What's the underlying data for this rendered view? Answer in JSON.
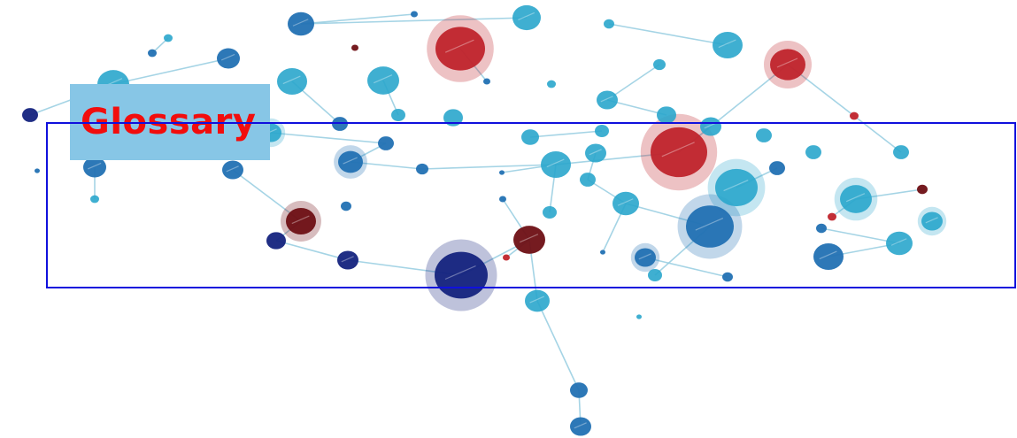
{
  "header": {
    "title": "Glossary"
  },
  "colors": {
    "title_text": "#f20d0d",
    "title_background": "#87c6e6",
    "frame": "#1010dd",
    "node_light_blue": "#2aa6cc",
    "node_mid_blue": "#2271b3",
    "node_dark_blue": "#14237e",
    "node_red": "#c0242c",
    "node_dark_red": "#6e0f14",
    "edge": "#8fc9df"
  },
  "diagram": {
    "type": "network",
    "icon": "molecule-network-graphic"
  }
}
